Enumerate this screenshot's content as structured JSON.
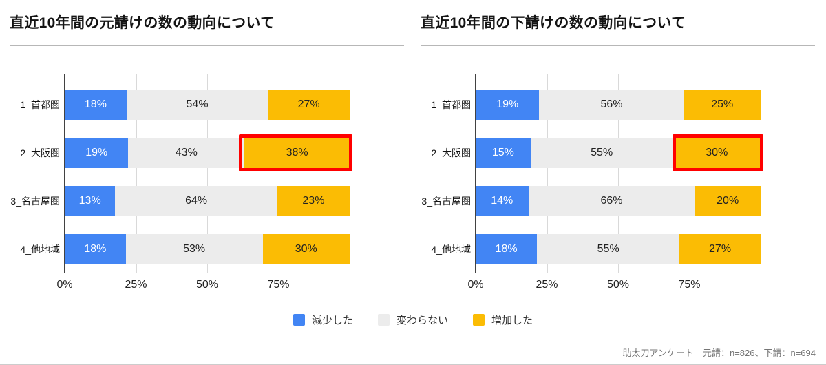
{
  "colors": {
    "decrease_blue": "#4285f4",
    "unchanged_gray": "#ececec",
    "increase_yellow": "#fbbc04",
    "highlight_red": "#ff0000",
    "axis_line": "#424242",
    "gridline": "#d9d9d9"
  },
  "legend": {
    "items": [
      {
        "label": "減少した",
        "color": "#4285f4"
      },
      {
        "label": "変わらない",
        "color": "#ececec"
      },
      {
        "label": "増加した",
        "color": "#fbbc04"
      }
    ]
  },
  "footer": {
    "text": "助太刀アンケート　元請：n=826、下請：n=694"
  },
  "chart_data": [
    {
      "type": "bar",
      "orientation": "horizontal",
      "stacked": "100%",
      "title": "直近10年間の元請けの数の動向について",
      "categories": [
        "1_首都圏",
        "2_大阪圏",
        "3_名古屋圏",
        "4_他地域"
      ],
      "series": [
        {
          "name": "減少した",
          "color": "#4285f4",
          "values": [
            18,
            19,
            13,
            18
          ]
        },
        {
          "name": "変わらない",
          "color": "#ececec",
          "values": [
            54,
            43,
            64,
            53
          ]
        },
        {
          "name": "増加した",
          "color": "#fbbc04",
          "values": [
            27,
            38,
            23,
            30
          ]
        }
      ],
      "value_suffix": "%",
      "x_ticks": [
        "0%",
        "25%",
        "50%",
        "75%"
      ],
      "gridlines": [
        0,
        25,
        50,
        75,
        100
      ],
      "xlim": [
        0,
        100
      ],
      "highlight": {
        "category_index": 1,
        "series_index": 2,
        "style": "red-box"
      }
    },
    {
      "type": "bar",
      "orientation": "horizontal",
      "stacked": "100%",
      "title": "直近10年間の下請けの数の動向について",
      "categories": [
        "1_首都圏",
        "2_大阪圏",
        "3_名古屋圏",
        "4_他地域"
      ],
      "series": [
        {
          "name": "減少した",
          "color": "#4285f4",
          "values": [
            19,
            15,
            14,
            18
          ]
        },
        {
          "name": "変わらない",
          "color": "#ececec",
          "values": [
            56,
            55,
            66,
            55
          ]
        },
        {
          "name": "増加した",
          "color": "#fbbc04",
          "values": [
            25,
            30,
            20,
            27
          ]
        }
      ],
      "value_suffix": "%",
      "x_ticks": [
        "0%",
        "25%",
        "50%",
        "75%"
      ],
      "gridlines": [
        0,
        25,
        50,
        75,
        100
      ],
      "xlim": [
        0,
        100
      ],
      "highlight": {
        "category_index": 1,
        "series_index": 2,
        "style": "red-box"
      }
    }
  ]
}
